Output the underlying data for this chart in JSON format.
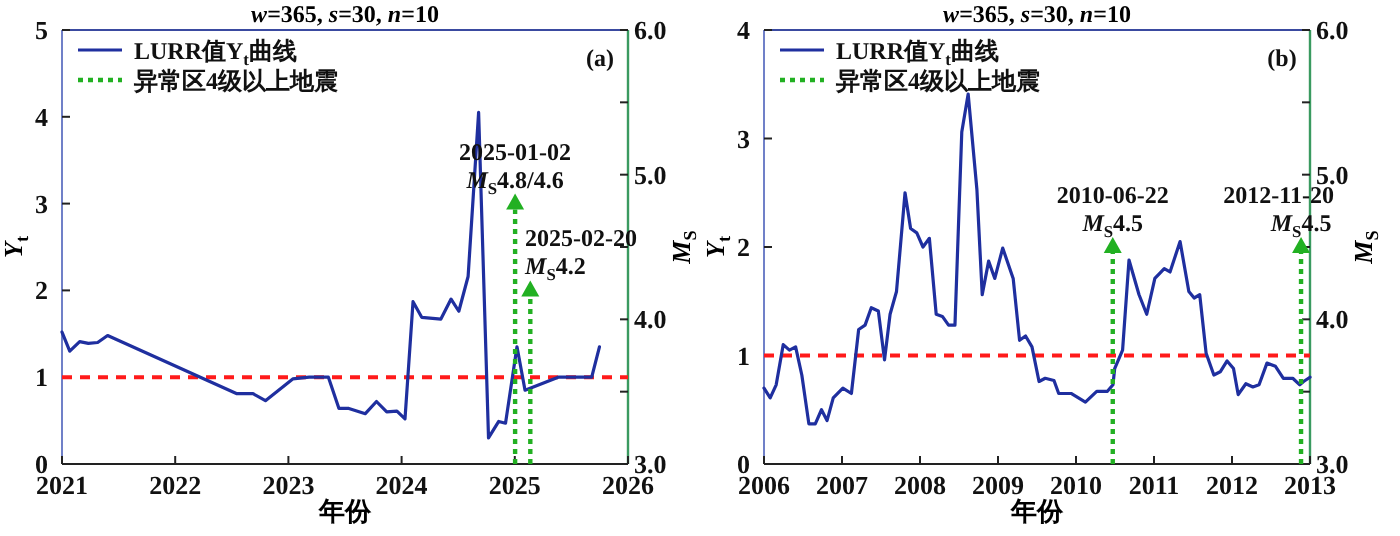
{
  "chart_data": [
    {
      "type": "line",
      "title": "*w*=365, *s*=30, *n*=10",
      "xlabel": "年份",
      "ylabel": "*Y*$_{t}$",
      "y2label": "*M*$_{S}$",
      "xlim": [
        "2021",
        "2026"
      ],
      "xticks": [
        "2021",
        "2022",
        "2023",
        "2024",
        "2025",
        "2026"
      ],
      "ylim": [
        0,
        5
      ],
      "yticks": [
        0,
        1,
        2,
        3,
        4,
        5
      ],
      "y2lim": [
        3,
        6
      ],
      "y2ticks": [
        {
          "value": 3,
          "label": "3.0"
        },
        {
          "value": 3.5,
          "label": null
        },
        {
          "value": 4,
          "label": "4.0"
        },
        {
          "value": 4.5,
          "label": null
        },
        {
          "value": 5,
          "label": "5.0"
        },
        {
          "value": 5.5,
          "label": null
        },
        {
          "value": 6,
          "label": "6.0"
        }
      ],
      "legend": "top left",
      "series": [
        {
          "name": "LURR值Y$_{t}$曲线",
          "color": "#1f2f9f",
          "line_style": "solid",
          "x": [
            "2021-01-01",
            "2021-01-26",
            "2021-02-27",
            "2021-03-27",
            "2021-04-26",
            "2021-05-28",
            "2022-07-19",
            "2022-09-09",
            "2022-10-19",
            "2023-01-15",
            "2023-03-09",
            "2023-05-10",
            "2023-06-13",
            "2023-07-15",
            "2023-09-06",
            "2023-10-12",
            "2023-11-14",
            "2023-12-17",
            "2024-01-12",
            "2024-02-07",
            "2024-03-06",
            "2024-05-07",
            "2024-06-09",
            "2024-07-04",
            "2024-08-03",
            "2024-09-06",
            "2024-10-08",
            "2024-11-10",
            "2024-12-02",
            "2025-01-08",
            "2025-02-03",
            "2025-05-21",
            "2025-09-06",
            "2025-10-01"
          ],
          "values": [
            1.52,
            1.3,
            1.41,
            1.39,
            1.4,
            1.48,
            0.81,
            0.81,
            0.73,
            0.98,
            1.0,
            1.0,
            0.64,
            0.64,
            0.58,
            0.72,
            0.6,
            0.61,
            0.52,
            1.87,
            1.69,
            1.67,
            1.9,
            1.76,
            2.16,
            4.05,
            0.3,
            0.49,
            0.47,
            1.35,
            0.85,
            1.0,
            1.0,
            1.35
          ]
        },
        {
          "name": "异常区4级以上地震",
          "type": "lollipop",
          "axis": "y2",
          "color": "#22b022",
          "line_style": "dotted",
          "marker": "triangle",
          "x": [
            "2025-01-02",
            "2025-02-20"
          ],
          "values": [
            4.8,
            4.2
          ]
        }
      ],
      "ref_lines": [
        {
          "axis": "y",
          "value": 1,
          "color": "#ff1a1a",
          "line_style": "dashed"
        }
      ],
      "annotations": [
        "(a)",
        "2025-01-02",
        "*M*$_{S}$4.8/4.6",
        "2025-02-20",
        "*M*$_{S}$4.2"
      ]
    },
    {
      "type": "line",
      "title": "*w*=365, *s*=30, *n*=10",
      "xlabel": "年份",
      "ylabel": "*Y*$_{t}$",
      "y2label": "*M*$_{S}$",
      "xlim": [
        "2006",
        "2013"
      ],
      "xticks": [
        "2006",
        "2007",
        "2008",
        "2009",
        "2010",
        "2011",
        "2012",
        "2013"
      ],
      "ylim": [
        0,
        4
      ],
      "yticks": [
        0,
        1,
        2,
        3,
        4
      ],
      "y2lim": [
        3,
        6
      ],
      "y2ticks": [
        {
          "value": 3,
          "label": "3.0"
        },
        {
          "value": 3.5,
          "label": null
        },
        {
          "value": 4,
          "label": "4.0"
        },
        {
          "value": 4.5,
          "label": null
        },
        {
          "value": 5,
          "label": "5.0"
        },
        {
          "value": 5.5,
          "label": null
        },
        {
          "value": 6,
          "label": "6.0"
        }
      ],
      "legend": "top left",
      "series": [
        {
          "name": "LURR值Y$_{t}$曲线",
          "color": "#1f2f9f",
          "line_style": "solid",
          "x": [
            "2006-01-01",
            "2006-01-30",
            "2006-02-27",
            "2006-04-01",
            "2006-04-30",
            "2006-05-29",
            "2006-06-27",
            "2006-07-30",
            "2006-08-29",
            "2006-09-27",
            "2006-10-23",
            "2006-11-21",
            "2007-01-05",
            "2007-02-14",
            "2007-03-20",
            "2007-04-19",
            "2007-05-18",
            "2007-06-20",
            "2007-07-19",
            "2007-08-14",
            "2007-09-13",
            "2007-10-23",
            "2007-11-18",
            "2007-12-17",
            "2008-01-15",
            "2008-02-14",
            "2008-03-17",
            "2008-04-15",
            "2008-05-14",
            "2008-06-13",
            "2008-07-15",
            "2008-08-14",
            "2008-09-24",
            "2008-10-19",
            "2008-11-18",
            "2008-12-17",
            "2009-01-23",
            "2009-03-13",
            "2009-04-12",
            "2009-05-10",
            "2009-06-09",
            "2009-07-12",
            "2009-08-10",
            "2009-09-20",
            "2009-10-12",
            "2009-12-09",
            "2010-02-14",
            "2010-04-08",
            "2010-05-28",
            "2010-06-23",
            "2010-07-01",
            "2010-08-07",
            "2010-09-06",
            "2010-10-23",
            "2010-11-28",
            "2011-01-05",
            "2011-02-18",
            "2011-03-17",
            "2011-05-03",
            "2011-06-13",
            "2011-07-08",
            "2011-08-03",
            "2011-09-02",
            "2011-10-08",
            "2011-11-07",
            "2011-12-09",
            "2012-01-08",
            "2012-01-30",
            "2012-03-06",
            "2012-04-08",
            "2012-05-07",
            "2012-06-13",
            "2012-07-23",
            "2012-08-29",
            "2012-10-12",
            "2012-11-14",
            "2012-12-02",
            "2013-01-01"
          ],
          "values": [
            0.7,
            0.61,
            0.73,
            1.1,
            1.05,
            1.08,
            0.82,
            0.37,
            0.37,
            0.5,
            0.4,
            0.61,
            0.7,
            0.65,
            1.24,
            1.28,
            1.44,
            1.41,
            0.96,
            1.38,
            1.59,
            2.5,
            2.17,
            2.13,
            2.0,
            2.08,
            1.38,
            1.36,
            1.28,
            1.28,
            3.06,
            3.41,
            2.53,
            1.56,
            1.87,
            1.71,
            1.99,
            1.71,
            1.14,
            1.18,
            1.08,
            0.76,
            0.79,
            0.77,
            0.65,
            0.65,
            0.57,
            0.67,
            0.67,
            0.73,
            0.88,
            1.05,
            1.88,
            1.56,
            1.38,
            1.71,
            1.8,
            1.77,
            2.05,
            1.59,
            1.53,
            1.56,
            1.02,
            0.82,
            0.85,
            0.95,
            0.88,
            0.64,
            0.74,
            0.71,
            0.73,
            0.93,
            0.9,
            0.79,
            0.79,
            0.73,
            0.76,
            0.8
          ]
        },
        {
          "name": "异常区4级以上地震",
          "type": "lollipop",
          "axis": "y2",
          "color": "#22b022",
          "line_style": "dotted",
          "marker": "triangle",
          "x": [
            "2010-06-22",
            "2012-11-20"
          ],
          "values": [
            4.5,
            4.5
          ]
        }
      ],
      "ref_lines": [
        {
          "axis": "y",
          "value": 1,
          "color": "#ff1a1a",
          "line_style": "dashed"
        }
      ],
      "annotations": [
        "(b)",
        "2010-06-22",
        "*M*$_{S}$4.5",
        "2012-11-20",
        "*M*$_{S}$4.5"
      ]
    }
  ]
}
